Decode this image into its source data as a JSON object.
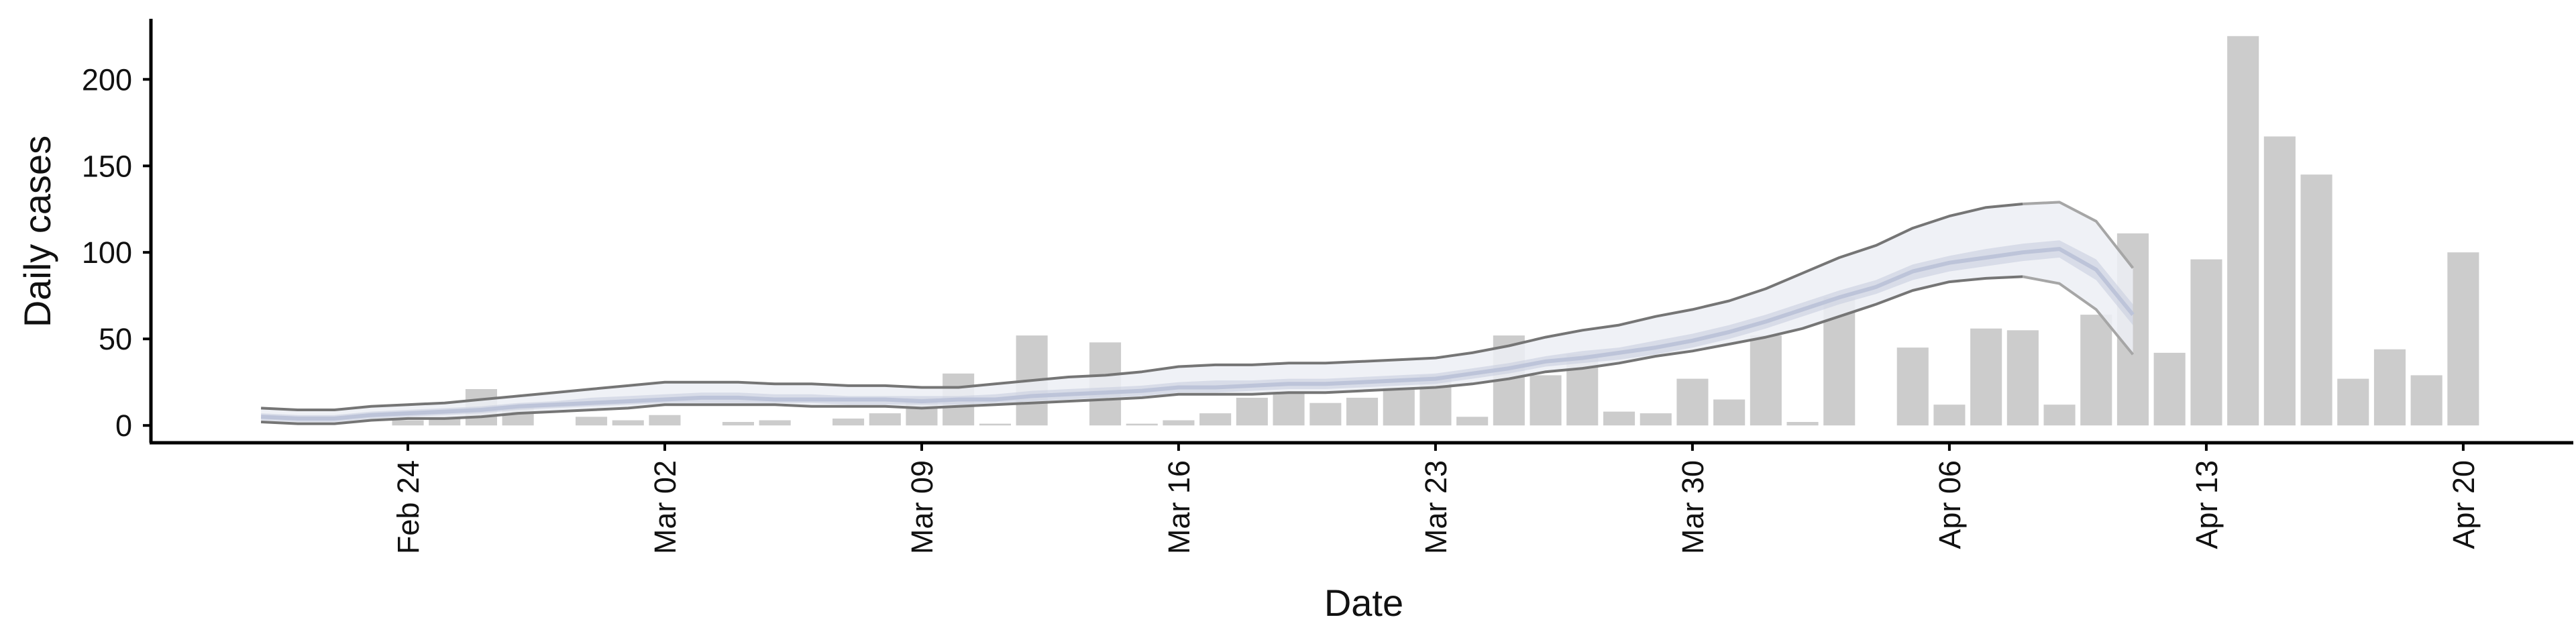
{
  "chart_data": {
    "type": "bar",
    "xlabel": "Date",
    "ylabel": "Daily cases",
    "ylim": [
      -10,
      235
    ],
    "xlim": [
      "2020-02-17",
      "2020-04-23"
    ],
    "grid": false,
    "legend": "none",
    "y_ticks": [
      0,
      50,
      100,
      150,
      200
    ],
    "x_ticks": [
      {
        "date": "2020-02-24",
        "label": "Feb 24"
      },
      {
        "date": "2020-03-02",
        "label": "Mar 02"
      },
      {
        "date": "2020-03-09",
        "label": "Mar 09"
      },
      {
        "date": "2020-03-16",
        "label": "Mar 16"
      },
      {
        "date": "2020-03-23",
        "label": "Mar 23"
      },
      {
        "date": "2020-03-30",
        "label": "Mar 30"
      },
      {
        "date": "2020-04-06",
        "label": "Apr 06"
      },
      {
        "date": "2020-04-13",
        "label": "Apr 13"
      },
      {
        "date": "2020-04-20",
        "label": "Apr 20"
      }
    ],
    "colors": {
      "bars": "#cccccc",
      "outer_band": "#eceef5",
      "inner_band": "#c5cbdd",
      "median_line": "#bdc4d9",
      "band_edge_dark": "#757575",
      "band_edge_light": "#a6a6a6",
      "axis": "#000000"
    },
    "bars": {
      "name": "Daily cases",
      "x": [
        "2020-02-24",
        "2020-02-25",
        "2020-02-26",
        "2020-02-27",
        "2020-02-29",
        "2020-03-01",
        "2020-03-02",
        "2020-03-04",
        "2020-03-05",
        "2020-03-07",
        "2020-03-08",
        "2020-03-09",
        "2020-03-10",
        "2020-03-11",
        "2020-03-12",
        "2020-03-14",
        "2020-03-15",
        "2020-03-16",
        "2020-03-17",
        "2020-03-18",
        "2020-03-19",
        "2020-03-20",
        "2020-03-21",
        "2020-03-22",
        "2020-03-23",
        "2020-03-24",
        "2020-03-25",
        "2020-03-26",
        "2020-03-27",
        "2020-03-28",
        "2020-03-29",
        "2020-03-30",
        "2020-03-31",
        "2020-04-01",
        "2020-04-02",
        "2020-04-03",
        "2020-04-05",
        "2020-04-06",
        "2020-04-07",
        "2020-04-08",
        "2020-04-09",
        "2020-04-10",
        "2020-04-11",
        "2020-04-12",
        "2020-04-13",
        "2020-04-14",
        "2020-04-15",
        "2020-04-16",
        "2020-04-17",
        "2020-04-18",
        "2020-04-19",
        "2020-04-20"
      ],
      "values": [
        3,
        4,
        21,
        11,
        5,
        3,
        6,
        2,
        3,
        4,
        7,
        16,
        30,
        1,
        52,
        48,
        1,
        3,
        7,
        16,
        19,
        13,
        16,
        22,
        29,
        5,
        52,
        29,
        41,
        8,
        7,
        27,
        15,
        52,
        2,
        74,
        45,
        12,
        56,
        55,
        12,
        64,
        111,
        42,
        96,
        225,
        167,
        145,
        27,
        44,
        29,
        100
      ]
    },
    "band": {
      "x": [
        "2020-02-20",
        "2020-02-21",
        "2020-02-22",
        "2020-02-23",
        "2020-02-24",
        "2020-02-25",
        "2020-02-26",
        "2020-02-27",
        "2020-02-28",
        "2020-02-29",
        "2020-03-01",
        "2020-03-02",
        "2020-03-03",
        "2020-03-04",
        "2020-03-05",
        "2020-03-06",
        "2020-03-07",
        "2020-03-08",
        "2020-03-09",
        "2020-03-10",
        "2020-03-11",
        "2020-03-12",
        "2020-03-13",
        "2020-03-14",
        "2020-03-15",
        "2020-03-16",
        "2020-03-17",
        "2020-03-18",
        "2020-03-19",
        "2020-03-20",
        "2020-03-21",
        "2020-03-22",
        "2020-03-23",
        "2020-03-24",
        "2020-03-25",
        "2020-03-26",
        "2020-03-27",
        "2020-03-28",
        "2020-03-29",
        "2020-03-30",
        "2020-03-31",
        "2020-04-01",
        "2020-04-02",
        "2020-04-03",
        "2020-04-04",
        "2020-04-05",
        "2020-04-06",
        "2020-04-07",
        "2020-04-08",
        "2020-04-09",
        "2020-04-10",
        "2020-04-11"
      ],
      "upper": [
        10,
        9,
        9,
        11,
        12,
        13,
        15,
        17,
        19,
        21,
        23,
        25,
        25,
        25,
        24,
        24,
        23,
        23,
        22,
        22,
        24,
        26,
        28,
        29,
        31,
        34,
        35,
        35,
        36,
        36,
        37,
        38,
        39,
        42,
        46,
        51,
        55,
        58,
        63,
        67,
        72,
        79,
        88,
        97,
        104,
        114,
        121,
        126,
        128,
        129,
        118,
        91
      ],
      "inner_upper": [
        7,
        6,
        6,
        8,
        9,
        10,
        11,
        13,
        14,
        16,
        17,
        18,
        19,
        19,
        18,
        18,
        17,
        17,
        17,
        17,
        18,
        20,
        21,
        22,
        23,
        25,
        26,
        26,
        27,
        27,
        28,
        29,
        30,
        33,
        36,
        40,
        43,
        45,
        49,
        53,
        58,
        64,
        71,
        78,
        84,
        93,
        98,
        102,
        105,
        107,
        96,
        70
      ],
      "median": [
        5,
        4,
        4,
        6,
        7,
        8,
        9,
        11,
        12,
        13,
        14,
        15,
        16,
        16,
        15,
        15,
        15,
        15,
        14,
        15,
        15,
        17,
        18,
        19,
        20,
        22,
        22,
        23,
        24,
        24,
        25,
        26,
        27,
        30,
        33,
        37,
        39,
        42,
        45,
        49,
        54,
        60,
        67,
        74,
        80,
        89,
        94,
        97,
        100,
        102,
        90,
        64
      ],
      "inner_lower": [
        3,
        2,
        2,
        4,
        5,
        6,
        7,
        9,
        10,
        11,
        12,
        13,
        13,
        13,
        13,
        13,
        12,
        12,
        12,
        12,
        13,
        14,
        15,
        16,
        17,
        19,
        19,
        20,
        21,
        21,
        22,
        23,
        24,
        27,
        30,
        34,
        36,
        38,
        41,
        45,
        50,
        56,
        63,
        70,
        76,
        84,
        89,
        92,
        95,
        97,
        84,
        58
      ],
      "lower": [
        2,
        1,
        1,
        3,
        4,
        4,
        5,
        7,
        8,
        9,
        10,
        12,
        12,
        12,
        12,
        11,
        11,
        11,
        10,
        11,
        12,
        13,
        14,
        15,
        16,
        18,
        18,
        18,
        19,
        19,
        20,
        21,
        22,
        24,
        27,
        31,
        33,
        36,
        40,
        43,
        47,
        51,
        56,
        63,
        70,
        78,
        83,
        85,
        86,
        82,
        67,
        41
      ]
    }
  }
}
